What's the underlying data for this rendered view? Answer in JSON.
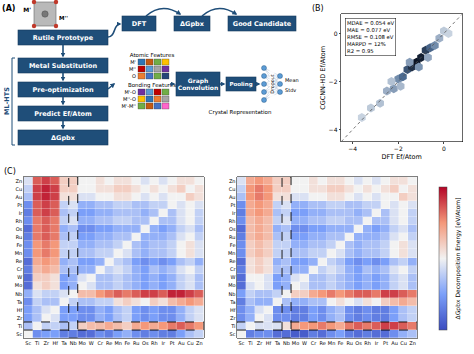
{
  "figure": {
    "panel_a": {
      "label": "(A)",
      "icon_labels": [
        "M'",
        "M''"
      ],
      "top_flow": [
        "Rutile Prototype",
        "DFT",
        "ΔGpbx",
        "Good Candidate"
      ],
      "side_label": "ML-HTS",
      "steps": [
        "Metal Substitution",
        "Pre-optimization",
        "Predict Ef/Atom",
        "ΔGpbx"
      ],
      "atomic_features": {
        "title": "Atomic Features",
        "rows": [
          "M'",
          "M''",
          "O"
        ]
      },
      "bonding_features": {
        "title": "Bonding Features",
        "rows": [
          "M'-O",
          "M''-O",
          "M'-M''"
        ]
      },
      "network": [
        "Graph Convolution",
        "Pooling",
        "Dropout"
      ],
      "representation": "Crystal Representation",
      "outputs": [
        "Mean",
        "Stdv"
      ]
    },
    "panel_b_label": "(B)",
    "panel_c_label": "(C)"
  },
  "chart_data": [
    {
      "type": "scatter",
      "marker": "hexagon",
      "xlabel": "DFT Ef/Atom",
      "ylabel": "CGCNN-HD Ef/Atom",
      "x": [
        -3.6,
        -3.2,
        -2.8,
        -2.5,
        -2.2,
        -2.0,
        -1.8,
        -1.6,
        -1.4,
        -1.2,
        -1.0,
        -0.8,
        -0.6,
        -0.4,
        -0.2,
        0.0,
        -1.5,
        -1.1,
        -2.3,
        -0.7,
        -1.9,
        0.2
      ],
      "values": [
        -3.5,
        -3.1,
        -2.9,
        -2.4,
        -2.3,
        -1.9,
        -1.8,
        -1.5,
        -1.4,
        -1.2,
        -1.0,
        -0.7,
        -0.6,
        -0.5,
        -0.2,
        0.1,
        -1.2,
        -1.4,
        -2.0,
        -1.0,
        -2.2,
        0.0
      ],
      "counts": [
        2,
        3,
        4,
        6,
        8,
        10,
        14,
        18,
        25,
        30,
        28,
        22,
        15,
        10,
        6,
        3,
        8,
        9,
        4,
        7,
        5,
        2
      ],
      "xlim": [
        -4.5,
        0.8
      ],
      "ylim": [
        -4.5,
        0.8
      ],
      "xticks": [
        -4,
        -2,
        0
      ],
      "yticks": [
        -4,
        -2,
        0
      ],
      "annotations": [
        "MDAE = 0.054 eV",
        "MAE = 0.077 eV",
        "RMSE = 0.108 eV",
        "MARPD = 12%",
        "R2 = 0.95"
      ]
    },
    {
      "type": "heatmap",
      "x": [
        "Sc",
        "Ti",
        "Zr",
        "Hf",
        "Ta",
        "Nb",
        "Mo",
        "W",
        "Cr",
        "Re",
        "Mn",
        "Fe",
        "Ru",
        "Os",
        "Rh",
        "Ir",
        "Pt",
        "Au",
        "Cu",
        "Zn"
      ],
      "y": [
        "Sc",
        "Ti",
        "Zr",
        "Hf",
        "Ta",
        "Nb",
        "Mo",
        "W",
        "Cr",
        "Re",
        "Mn",
        "Fe",
        "Ru",
        "Os",
        "Rh",
        "Ir",
        "Pt",
        "Au",
        "Cu",
        "Zn"
      ],
      "highlight_column": "Nb",
      "highlight_row": "Ti",
      "zlim": [
        -1,
        1
      ],
      "z": [
        [
          0,
          -0.6,
          -0.5,
          -0.5,
          -0.7,
          -0.7,
          -0.8,
          -0.8,
          -0.6,
          -0.7,
          -0.5,
          -0.4,
          -0.6,
          -0.7,
          -0.6,
          -0.7,
          -0.7,
          -0.5,
          -0.3,
          -0.2
        ],
        [
          -0.3,
          0,
          -0.2,
          -0.2,
          -0.3,
          -0.2,
          0.2,
          0.3,
          0.3,
          0.4,
          0.3,
          0.2,
          0.4,
          0.5,
          0.4,
          0.5,
          0.6,
          0.7,
          0.6,
          0.5
        ],
        [
          -0.5,
          -0.3,
          0,
          -0.1,
          -0.5,
          -0.5,
          -0.6,
          -0.6,
          -0.4,
          -0.5,
          -0.3,
          -0.2,
          -0.5,
          -0.6,
          -0.5,
          -0.6,
          -0.6,
          -0.4,
          -0.2,
          -0.1
        ],
        [
          -0.5,
          -0.3,
          -0.1,
          0,
          -0.5,
          -0.5,
          -0.6,
          -0.6,
          -0.4,
          -0.5,
          -0.3,
          -0.2,
          -0.5,
          -0.6,
          -0.5,
          -0.6,
          -0.6,
          -0.4,
          -0.2,
          -0.1
        ],
        [
          -0.6,
          -0.2,
          -0.3,
          -0.3,
          0,
          -0.2,
          -0.3,
          -0.3,
          -0.2,
          -0.2,
          0.1,
          0.2,
          0.1,
          0.0,
          0.2,
          0.1,
          0.3,
          0.4,
          0.5,
          0.4
        ],
        [
          -0.4,
          -0.1,
          -0.2,
          -0.2,
          -0.1,
          0,
          0.3,
          0.3,
          0.5,
          0.6,
          0.7,
          0.6,
          0.7,
          0.8,
          0.8,
          0.7,
          0.9,
          0.9,
          0.8,
          0.7
        ],
        [
          -0.8,
          0.1,
          0.2,
          0.1,
          -0.5,
          -0.4,
          0,
          -0.1,
          -0.3,
          -0.3,
          -0.2,
          -0.3,
          -0.4,
          -0.5,
          -0.4,
          -0.5,
          -0.4,
          -0.2,
          -0.1,
          -0.3
        ],
        [
          -0.8,
          0.2,
          0.2,
          0.1,
          -0.5,
          -0.4,
          -0.1,
          0,
          -0.3,
          -0.3,
          -0.2,
          -0.3,
          -0.4,
          -0.5,
          -0.4,
          -0.5,
          -0.4,
          -0.2,
          -0.1,
          -0.3
        ],
        [
          -0.7,
          0.3,
          0.4,
          0.3,
          -0.3,
          -0.3,
          -0.4,
          -0.4,
          0,
          -0.2,
          -0.1,
          -0.2,
          -0.4,
          -0.5,
          -0.3,
          -0.4,
          -0.3,
          -0.1,
          0.0,
          -0.2
        ],
        [
          -0.8,
          0.4,
          0.5,
          0.4,
          -0.4,
          -0.3,
          -0.5,
          -0.5,
          -0.4,
          0,
          -0.2,
          -0.3,
          -0.5,
          -0.6,
          -0.5,
          -0.6,
          -0.5,
          -0.3,
          -0.2,
          -0.4
        ],
        [
          -0.6,
          0.5,
          0.6,
          0.5,
          -0.2,
          -0.2,
          -0.3,
          -0.3,
          -0.2,
          -0.2,
          0,
          -0.1,
          -0.3,
          -0.4,
          -0.3,
          -0.3,
          -0.2,
          0.0,
          0.1,
          -0.1
        ],
        [
          -0.6,
          0.5,
          0.6,
          0.5,
          -0.2,
          -0.2,
          -0.4,
          -0.4,
          -0.3,
          -0.3,
          -0.2,
          0,
          -0.3,
          -0.4,
          -0.3,
          -0.3,
          -0.2,
          0.0,
          0.1,
          -0.1
        ],
        [
          -0.7,
          0.6,
          0.7,
          0.6,
          -0.3,
          -0.2,
          -0.5,
          -0.5,
          -0.4,
          -0.4,
          -0.3,
          -0.3,
          0,
          -0.4,
          -0.4,
          -0.4,
          -0.3,
          -0.1,
          0.0,
          -0.2
        ],
        [
          -0.8,
          0.6,
          0.7,
          0.6,
          -0.4,
          -0.3,
          -0.6,
          -0.6,
          -0.5,
          -0.5,
          -0.4,
          -0.4,
          -0.4,
          0,
          -0.4,
          -0.5,
          -0.4,
          -0.2,
          -0.1,
          -0.3
        ],
        [
          -0.6,
          0.6,
          0.7,
          0.6,
          -0.2,
          -0.1,
          -0.4,
          -0.4,
          -0.3,
          -0.3,
          -0.2,
          -0.2,
          -0.3,
          -0.3,
          0,
          -0.3,
          -0.3,
          -0.1,
          0.0,
          -0.2
        ],
        [
          -0.7,
          0.7,
          0.8,
          0.7,
          -0.3,
          -0.2,
          -0.5,
          -0.5,
          -0.4,
          -0.4,
          -0.3,
          -0.3,
          -0.3,
          -0.4,
          -0.3,
          0,
          -0.3,
          -0.1,
          0.0,
          -0.2
        ],
        [
          -0.6,
          0.7,
          0.8,
          0.7,
          -0.2,
          -0.1,
          -0.4,
          -0.4,
          -0.3,
          -0.3,
          -0.2,
          -0.2,
          -0.3,
          -0.3,
          -0.2,
          -0.2,
          0,
          -0.1,
          0.0,
          -0.1
        ],
        [
          -0.3,
          0.8,
          0.9,
          0.8,
          0.1,
          0.1,
          -0.1,
          -0.1,
          0.0,
          0.0,
          0.1,
          0.1,
          0.0,
          -0.1,
          0.0,
          -0.1,
          0.0,
          0,
          0.2,
          0.1
        ],
        [
          -0.2,
          0.8,
          0.9,
          0.8,
          0.2,
          0.2,
          0.0,
          0.0,
          0.1,
          0.1,
          0.2,
          0.2,
          0.1,
          0.0,
          0.1,
          0.0,
          0.1,
          0.2,
          0,
          0.1
        ],
        [
          -0.1,
          0.7,
          0.8,
          0.7,
          0.2,
          0.2,
          0.0,
          0.0,
          0.1,
          0.0,
          0.1,
          0.1,
          0.0,
          -0.1,
          0.0,
          -0.1,
          0.0,
          0.1,
          0.1,
          0
        ]
      ]
    },
    {
      "type": "heatmap",
      "x": [
        "Sc",
        "Ti",
        "Zr",
        "Hf",
        "Ta",
        "Nb",
        "Mo",
        "W",
        "Cr",
        "Re",
        "Mn",
        "Fe",
        "Ru",
        "Os",
        "Rh",
        "Ir",
        "Pt",
        "Au",
        "Cu",
        "Zn"
      ],
      "y": [
        "Sc",
        "Ti",
        "Zr",
        "Hf",
        "Ta",
        "Nb",
        "Mo",
        "W",
        "Cr",
        "Re",
        "Mn",
        "Fe",
        "Ru",
        "Os",
        "Rh",
        "Ir",
        "Pt",
        "Au",
        "Cu",
        "Zn"
      ],
      "highlight_column": "Nb",
      "highlight_row": "Ti",
      "zlim": [
        -1,
        1
      ],
      "colorbar_title": "ΔGpbx Decomposition Energy [eV/Atom]",
      "z": [
        [
          0,
          -0.7,
          -0.6,
          -0.6,
          -0.8,
          -0.8,
          -0.9,
          -0.9,
          -0.7,
          -0.8,
          -0.6,
          -0.5,
          -0.7,
          -0.8,
          -0.7,
          -0.8,
          -0.8,
          -0.6,
          -0.4,
          -0.3
        ],
        [
          -0.2,
          0,
          -0.1,
          -0.1,
          -0.1,
          0.1,
          0.4,
          0.5,
          0.5,
          0.6,
          0.5,
          0.4,
          0.6,
          0.7,
          0.6,
          0.7,
          0.8,
          0.8,
          0.7,
          0.6
        ],
        [
          -0.6,
          -0.4,
          0,
          -0.1,
          -0.6,
          -0.6,
          -0.7,
          -0.7,
          -0.5,
          -0.6,
          -0.4,
          -0.3,
          -0.6,
          -0.7,
          -0.6,
          -0.7,
          -0.7,
          -0.5,
          -0.3,
          -0.2
        ],
        [
          -0.6,
          -0.4,
          -0.1,
          0,
          -0.6,
          -0.6,
          -0.7,
          -0.7,
          -0.5,
          -0.6,
          -0.4,
          -0.3,
          -0.6,
          -0.7,
          -0.6,
          -0.7,
          -0.7,
          -0.5,
          -0.3,
          -0.2
        ],
        [
          -0.7,
          -0.3,
          -0.4,
          -0.4,
          0,
          -0.3,
          -0.4,
          -0.4,
          -0.3,
          -0.3,
          0.0,
          0.1,
          0.0,
          -0.1,
          0.1,
          0.0,
          0.2,
          0.3,
          0.4,
          0.3
        ],
        [
          -0.5,
          -0.2,
          -0.3,
          -0.3,
          -0.2,
          0,
          0.2,
          0.2,
          0.4,
          0.5,
          0.6,
          0.5,
          0.6,
          0.7,
          0.7,
          0.6,
          0.8,
          0.8,
          0.7,
          0.6
        ],
        [
          -0.8,
          -0.1,
          0.0,
          -0.1,
          -0.5,
          -0.4,
          0,
          -0.1,
          -0.3,
          -0.3,
          -0.2,
          -0.3,
          -0.4,
          -0.5,
          -0.4,
          -0.5,
          -0.4,
          -0.2,
          -0.1,
          -0.3
        ],
        [
          -0.8,
          0.0,
          0.0,
          -0.1,
          -0.5,
          -0.4,
          -0.1,
          0,
          -0.3,
          -0.3,
          -0.2,
          -0.3,
          -0.4,
          -0.5,
          -0.4,
          -0.5,
          -0.4,
          -0.2,
          -0.1,
          -0.3
        ],
        [
          -0.7,
          0.1,
          0.2,
          0.1,
          -0.3,
          -0.3,
          -0.4,
          -0.4,
          0,
          -0.2,
          -0.1,
          -0.2,
          -0.4,
          -0.5,
          -0.3,
          -0.4,
          -0.3,
          -0.1,
          0.0,
          -0.2
        ],
        [
          -0.8,
          0.1,
          0.2,
          0.1,
          -0.4,
          -0.3,
          -0.5,
          -0.5,
          -0.4,
          0,
          -0.2,
          -0.3,
          -0.5,
          -0.6,
          -0.5,
          -0.6,
          -0.5,
          -0.3,
          -0.2,
          -0.4
        ],
        [
          -0.6,
          0.2,
          0.3,
          0.2,
          -0.2,
          -0.2,
          -0.3,
          -0.3,
          -0.2,
          -0.2,
          0,
          -0.1,
          -0.3,
          -0.4,
          -0.3,
          -0.3,
          -0.2,
          0.0,
          0.1,
          -0.1
        ],
        [
          -0.6,
          0.2,
          0.3,
          0.2,
          -0.2,
          -0.2,
          -0.4,
          -0.4,
          -0.3,
          -0.3,
          -0.2,
          0,
          -0.3,
          -0.4,
          -0.3,
          -0.3,
          -0.2,
          0.0,
          0.1,
          -0.1
        ],
        [
          -0.7,
          0.3,
          0.4,
          0.3,
          -0.3,
          -0.2,
          -0.5,
          -0.5,
          -0.4,
          -0.4,
          -0.3,
          -0.3,
          0,
          -0.4,
          -0.4,
          -0.4,
          -0.3,
          -0.1,
          0.0,
          -0.2
        ],
        [
          -0.8,
          0.3,
          0.4,
          0.3,
          -0.4,
          -0.3,
          -0.6,
          -0.6,
          -0.5,
          -0.5,
          -0.4,
          -0.4,
          -0.4,
          0,
          -0.4,
          -0.5,
          -0.4,
          -0.2,
          -0.1,
          -0.3
        ],
        [
          -0.6,
          0.3,
          0.4,
          0.3,
          -0.2,
          -0.1,
          -0.4,
          -0.4,
          -0.3,
          -0.3,
          -0.2,
          -0.2,
          -0.3,
          -0.3,
          0,
          -0.3,
          -0.3,
          -0.1,
          0.0,
          -0.2
        ],
        [
          -0.7,
          0.4,
          0.5,
          0.4,
          -0.3,
          -0.2,
          -0.5,
          -0.5,
          -0.4,
          -0.4,
          -0.3,
          -0.3,
          -0.3,
          -0.4,
          -0.3,
          0,
          -0.3,
          -0.1,
          0.0,
          -0.2
        ],
        [
          -0.6,
          0.4,
          0.5,
          0.4,
          -0.2,
          -0.1,
          -0.4,
          -0.4,
          -0.3,
          -0.3,
          -0.2,
          -0.2,
          -0.3,
          -0.3,
          -0.2,
          -0.2,
          0,
          -0.1,
          0.0,
          -0.1
        ],
        [
          -0.3,
          0.5,
          0.6,
          0.5,
          0.1,
          0.1,
          -0.1,
          -0.1,
          0.0,
          0.0,
          0.1,
          0.1,
          0.0,
          -0.1,
          0.0,
          -0.1,
          0.0,
          0,
          0.2,
          0.1
        ],
        [
          -0.2,
          0.5,
          0.6,
          0.5,
          0.2,
          0.2,
          0.0,
          0.0,
          0.1,
          0.1,
          0.2,
          0.2,
          0.1,
          0.0,
          0.1,
          0.0,
          0.1,
          0.2,
          0,
          0.1
        ],
        [
          -0.1,
          0.4,
          0.5,
          0.4,
          0.2,
          0.2,
          0.0,
          0.0,
          0.1,
          0.0,
          0.1,
          0.1,
          0.0,
          -0.1,
          0.0,
          -0.1,
          0.0,
          0.1,
          0.1,
          0
        ]
      ]
    }
  ]
}
